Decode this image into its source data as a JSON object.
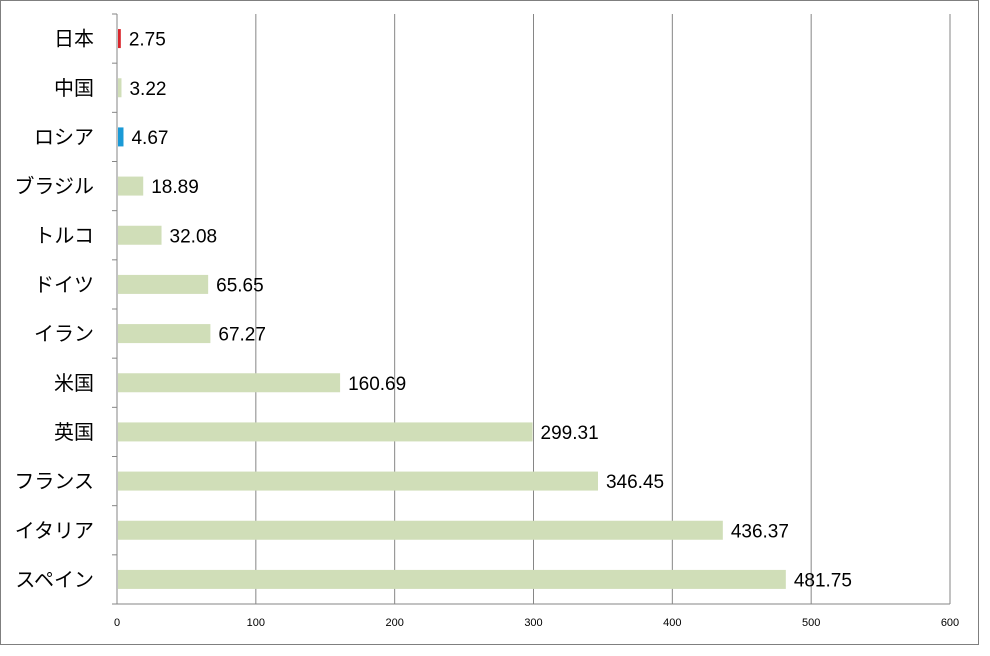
{
  "chart_data": {
    "type": "bar",
    "orientation": "horizontal",
    "title": "",
    "xlabel": "",
    "ylabel": "",
    "categories": [
      "日本",
      "中国",
      "ロシア",
      "ブラジル",
      "トルコ",
      "ドイツ",
      "イラン",
      "米国",
      "英国",
      "フランス",
      "イタリア",
      "スペイン"
    ],
    "values": [
      2.75,
      3.22,
      4.67,
      18.89,
      32.08,
      65.65,
      67.27,
      160.69,
      299.31,
      346.45,
      436.37,
      481.75
    ],
    "value_labels": [
      "2.75",
      "3.22",
      "4.67",
      "18.89",
      "32.08",
      "65.65",
      "67.27",
      "160.69",
      "299.31",
      "346.45",
      "436.37",
      "481.75"
    ],
    "bar_colors": [
      "#d9262c",
      "#d0deb8",
      "#1b9ad6",
      "#d0deb8",
      "#d0deb8",
      "#d0deb8",
      "#d0deb8",
      "#d0deb8",
      "#d0deb8",
      "#d0deb8",
      "#d0deb8",
      "#d0deb8"
    ],
    "xlim": [
      0,
      600
    ],
    "xticks": [
      "0",
      "100",
      "200",
      "300",
      "400",
      "500",
      "600"
    ],
    "grid": "vertical",
    "legend": "none"
  }
}
